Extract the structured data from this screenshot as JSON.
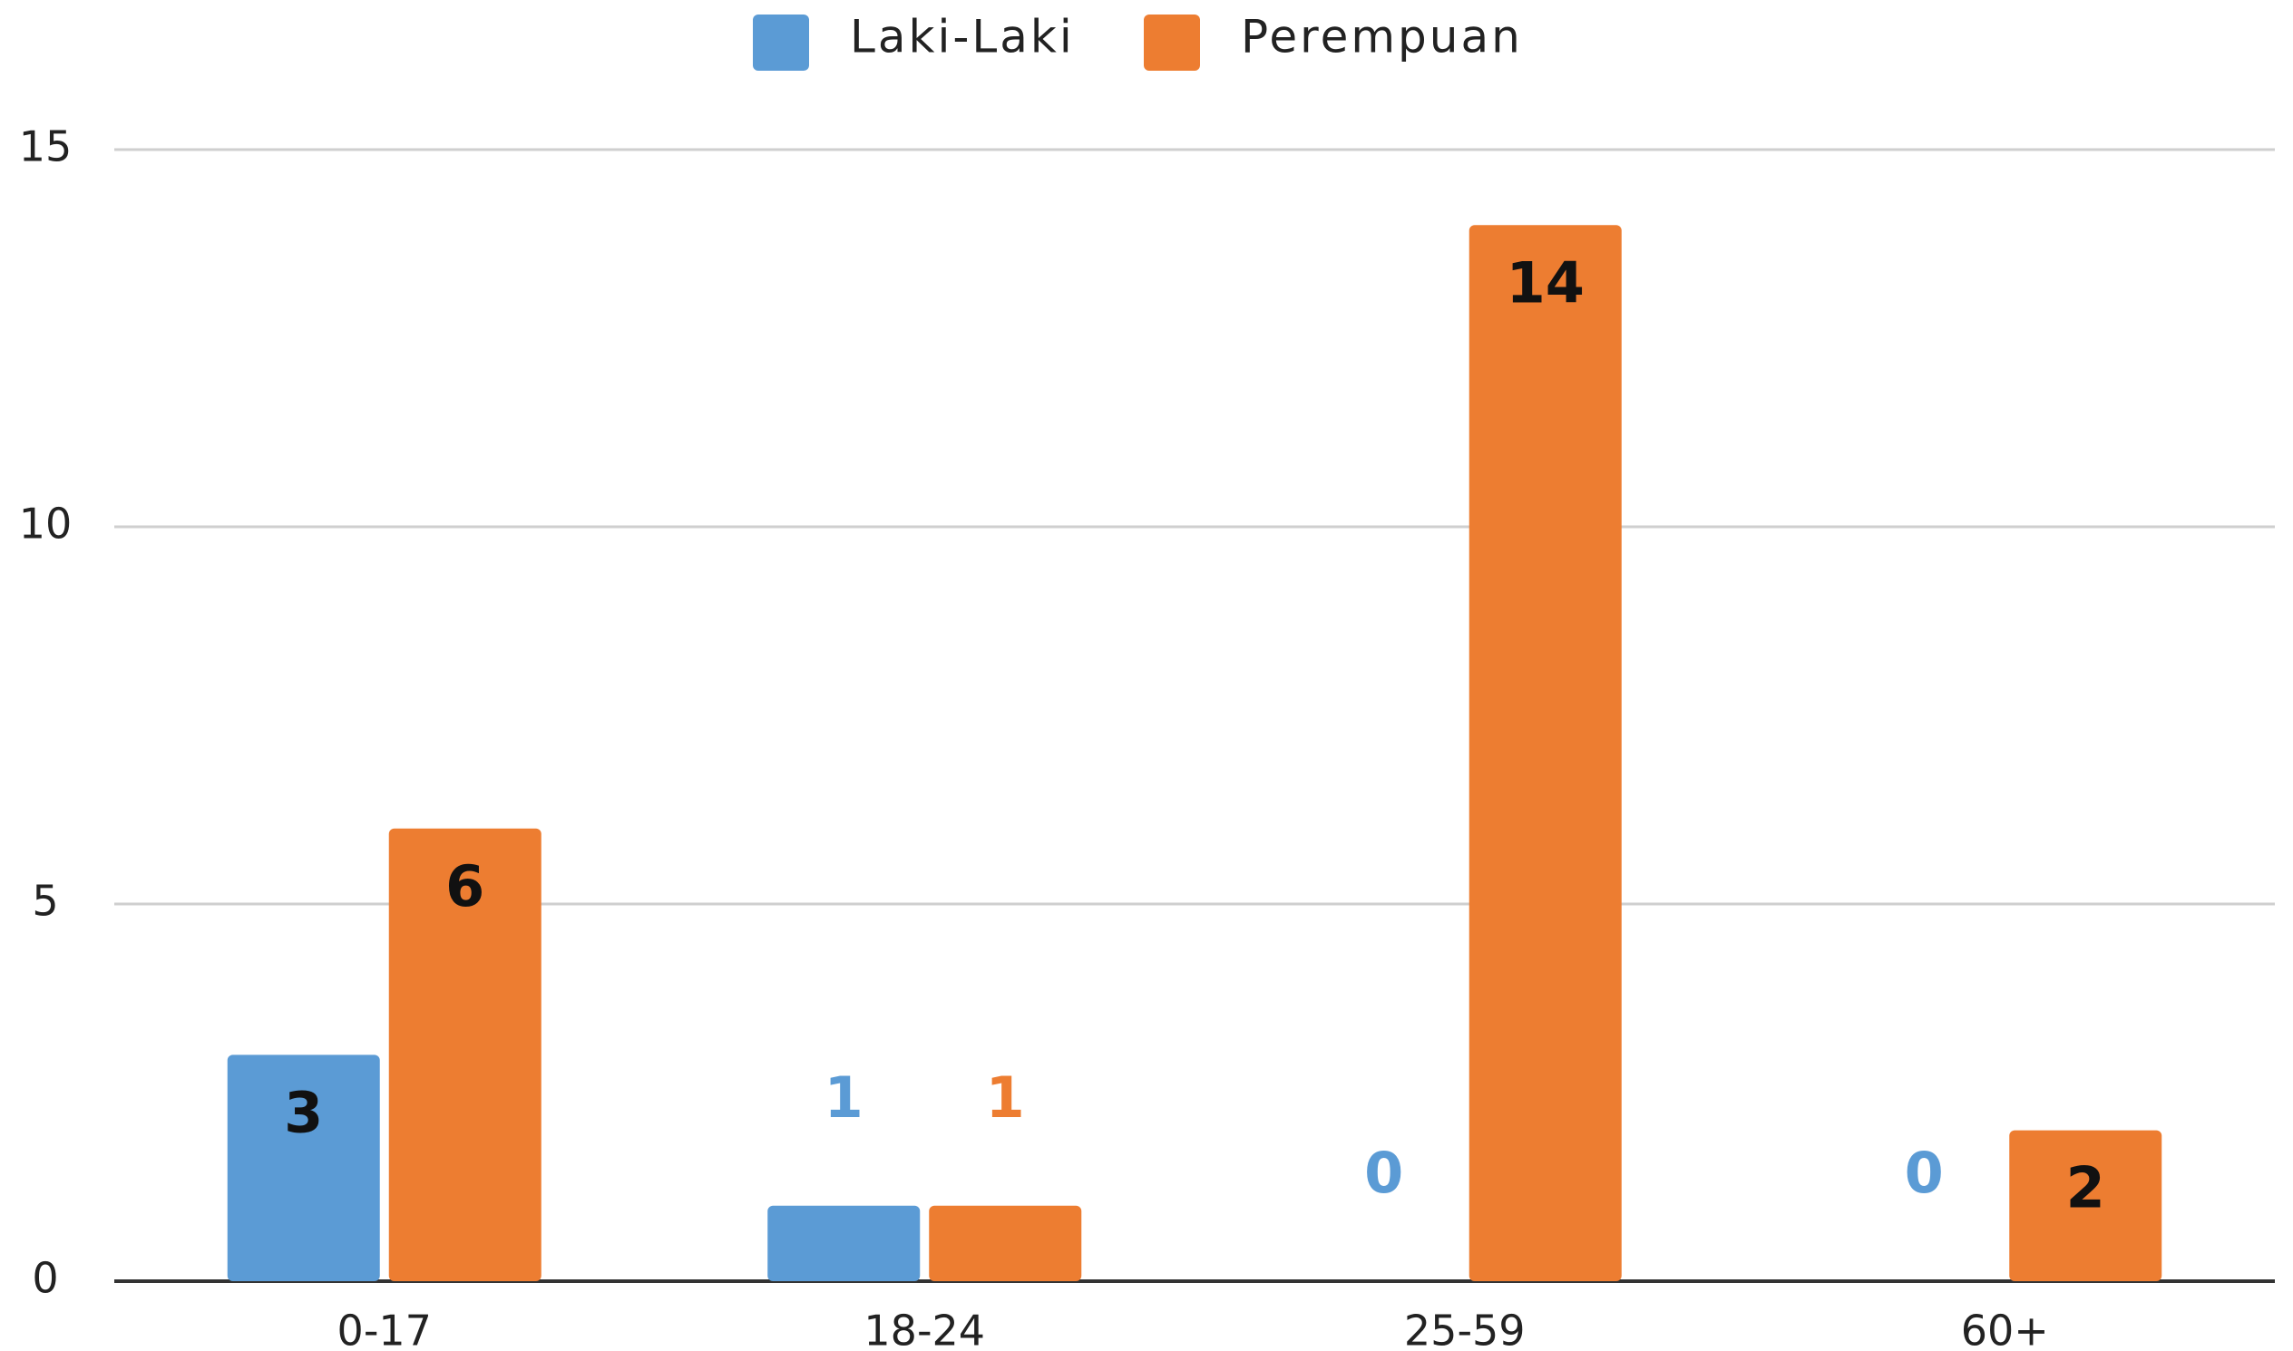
{
  "chart_data": {
    "type": "bar",
    "categories": [
      "0-17",
      "18-24",
      "25-59",
      "60+"
    ],
    "series": [
      {
        "name": "Laki-Laki",
        "color": "#5b9bd5",
        "values": [
          3,
          1,
          0,
          0
        ]
      },
      {
        "name": "Perempuan",
        "color": "#ed7d31",
        "values": [
          6,
          1,
          14,
          2
        ]
      }
    ],
    "ylim": [
      0,
      15
    ],
    "yticks": [
      0,
      5,
      10,
      15
    ],
    "grid": true,
    "legend": "top"
  }
}
